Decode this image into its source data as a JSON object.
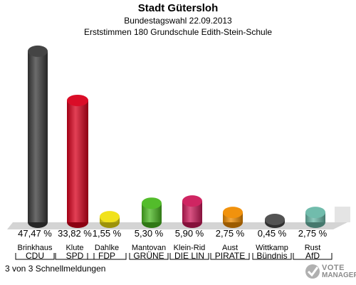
{
  "header": {
    "title": "Stadt Gütersloh",
    "subtitle": "Bundestagswahl 22.09.2013",
    "subtitle2": "Erststimmen 180 Grundschule Edith-Stein-Schule"
  },
  "footer": {
    "text": "3 von 3 Schnellmeldungen"
  },
  "logo": {
    "line1": "VOTE",
    "line2": "MANAGER"
  },
  "colors": {
    "background": "#ffffff",
    "floor": "#d4d4d4",
    "candidates": [
      "#3a3a3a",
      "#d8001c",
      "#f0e010",
      "#4ab820",
      "#cc1a5a",
      "#f08c00",
      "#4a4a4a",
      "#6ab8a8"
    ]
  },
  "chart_data": {
    "type": "bar",
    "title": "Stadt Gütersloh",
    "ylim": [
      0,
      50
    ],
    "categories": [
      "Brinkhaus",
      "Klute",
      "Dahlke",
      "Mantovan",
      "Klein-Rid",
      "Aust",
      "Wittkamp",
      "Rust"
    ],
    "parties": [
      "CDU",
      "SPD",
      "FDP",
      "GRÜNE",
      "DIE LIN",
      "PIRATE",
      "Bündnis",
      "AfD"
    ],
    "values": [
      47.47,
      33.82,
      1.55,
      5.3,
      5.9,
      2.75,
      0.45,
      2.75
    ],
    "value_labels": [
      "47,47 %",
      "33,82 %",
      "1,55 %",
      "5,30 %",
      "5,90 %",
      "2,75 %",
      "0,45 %",
      "2,75 %"
    ]
  }
}
